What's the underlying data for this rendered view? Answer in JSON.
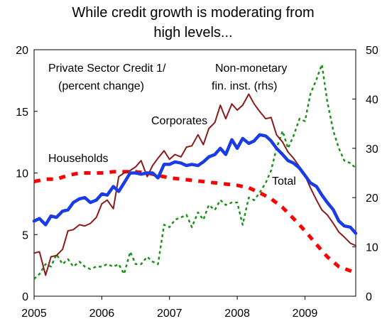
{
  "chart_data": {
    "type": "line",
    "title_lines": [
      "While credit growth is moderating from",
      "high levels..."
    ],
    "annotations": {
      "header": [
        "Private Sector Credit 1/",
        "(percent change)"
      ],
      "nonmonetary": [
        "Non-monetary",
        "fin. inst. (rhs)"
      ],
      "corporates": "Corporates",
      "households": "Households",
      "total": "Total"
    },
    "x_ticks": [
      "2005",
      "2006",
      "2007",
      "2008",
      "2009"
    ],
    "x_range": [
      2005,
      2009.75
    ],
    "y_left": {
      "range": [
        0,
        20
      ],
      "ticks": [
        "0",
        "5",
        "10",
        "15",
        "20"
      ]
    },
    "y_right": {
      "range": [
        0,
        50
      ],
      "ticks": [
        "0",
        "10",
        "20",
        "30",
        "40",
        "50"
      ]
    },
    "colors": {
      "corporates": "#8b1a1a",
      "households": "#ff0000",
      "total": "#1a3ce6",
      "nonmonetary": "#1f8f1f"
    },
    "series": [
      {
        "key": "corporates",
        "axis": "left",
        "x": [
          2005.0,
          2005.08,
          2005.17,
          2005.25,
          2005.33,
          2005.42,
          2005.5,
          2005.58,
          2005.67,
          2005.75,
          2005.83,
          2005.92,
          2006.0,
          2006.08,
          2006.17,
          2006.25,
          2006.33,
          2006.42,
          2006.5,
          2006.58,
          2006.67,
          2006.75,
          2006.83,
          2006.92,
          2007.0,
          2007.08,
          2007.17,
          2007.25,
          2007.33,
          2007.42,
          2007.5,
          2007.58,
          2007.67,
          2007.75,
          2007.83,
          2007.92,
          2008.0,
          2008.08,
          2008.17,
          2008.25,
          2008.33,
          2008.42,
          2008.5,
          2008.58,
          2008.67,
          2008.75,
          2008.83,
          2008.92,
          2009.0,
          2009.08,
          2009.17,
          2009.25,
          2009.33,
          2009.42,
          2009.5,
          2009.58,
          2009.67,
          2009.75
        ],
        "values": [
          3.5,
          3.6,
          1.7,
          3.2,
          3.3,
          3.8,
          5.3,
          5.4,
          5.8,
          5.7,
          5.9,
          6.4,
          7.5,
          7.8,
          7.1,
          9.7,
          10.0,
          10.2,
          10.5,
          11.0,
          9.7,
          10.6,
          11.2,
          11.8,
          11.1,
          11.5,
          11.3,
          12.1,
          12.2,
          13.1,
          12.3,
          13.6,
          14.1,
          15.5,
          14.4,
          15.6,
          15.1,
          15.5,
          16.4,
          15.6,
          15.0,
          14.4,
          14.5,
          13.1,
          12.5,
          11.7,
          11.2,
          10.5,
          9.8,
          8.8,
          7.8,
          7.0,
          6.6,
          5.9,
          5.2,
          4.8,
          4.3,
          4.1
        ]
      },
      {
        "key": "households",
        "axis": "left",
        "x": [
          2005.0,
          2005.17,
          2005.33,
          2005.5,
          2005.67,
          2005.83,
          2006.0,
          2006.17,
          2006.33,
          2006.5,
          2006.67,
          2006.83,
          2007.0,
          2007.17,
          2007.33,
          2007.5,
          2007.67,
          2007.83,
          2008.0,
          2008.17,
          2008.33,
          2008.5,
          2008.67,
          2008.83,
          2009.0,
          2009.17,
          2009.33,
          2009.5,
          2009.75
        ],
        "values": [
          9.3,
          9.5,
          9.5,
          9.8,
          10.0,
          10.0,
          10.0,
          10.1,
          10.1,
          10.1,
          10.0,
          9.8,
          9.6,
          9.5,
          9.4,
          9.3,
          9.2,
          9.1,
          9.0,
          8.8,
          8.4,
          7.9,
          7.2,
          6.3,
          5.3,
          4.2,
          3.2,
          2.4,
          1.9
        ]
      },
      {
        "key": "total",
        "axis": "left",
        "x": [
          2005.0,
          2005.08,
          2005.17,
          2005.25,
          2005.33,
          2005.42,
          2005.5,
          2005.58,
          2005.67,
          2005.75,
          2005.83,
          2005.92,
          2006.0,
          2006.08,
          2006.17,
          2006.25,
          2006.33,
          2006.42,
          2006.5,
          2006.58,
          2006.67,
          2006.75,
          2006.83,
          2006.92,
          2007.0,
          2007.08,
          2007.17,
          2007.25,
          2007.33,
          2007.42,
          2007.5,
          2007.58,
          2007.67,
          2007.75,
          2007.83,
          2007.92,
          2008.0,
          2008.08,
          2008.17,
          2008.25,
          2008.33,
          2008.42,
          2008.5,
          2008.58,
          2008.67,
          2008.75,
          2008.83,
          2008.92,
          2009.0,
          2009.08,
          2009.17,
          2009.25,
          2009.33,
          2009.42,
          2009.5,
          2009.58,
          2009.67,
          2009.75
        ],
        "values": [
          6.1,
          6.3,
          5.8,
          6.5,
          6.4,
          6.9,
          7.0,
          7.6,
          7.9,
          8.0,
          7.6,
          7.8,
          8.3,
          8.2,
          8.9,
          8.5,
          9.2,
          10.0,
          10.0,
          9.9,
          10.0,
          10.0,
          9.6,
          10.7,
          10.7,
          10.9,
          10.8,
          10.6,
          10.7,
          10.6,
          10.9,
          11.3,
          11.5,
          12.0,
          11.5,
          12.7,
          12.0,
          12.8,
          12.4,
          12.6,
          13.1,
          13.0,
          12.6,
          12.0,
          11.5,
          11.0,
          10.8,
          10.4,
          9.8,
          9.2,
          8.9,
          8.2,
          7.6,
          7.0,
          6.1,
          5.7,
          5.6,
          5.1
        ]
      },
      {
        "key": "nonmonetary",
        "axis": "right",
        "x": [
          2005.0,
          2005.08,
          2005.17,
          2005.25,
          2005.33,
          2005.42,
          2005.5,
          2005.58,
          2005.67,
          2005.75,
          2005.83,
          2005.92,
          2006.0,
          2006.08,
          2006.17,
          2006.25,
          2006.33,
          2006.42,
          2006.5,
          2006.58,
          2006.67,
          2006.75,
          2006.83,
          2006.92,
          2007.0,
          2007.08,
          2007.17,
          2007.25,
          2007.33,
          2007.42,
          2007.5,
          2007.58,
          2007.67,
          2007.75,
          2007.83,
          2007.92,
          2008.0,
          2008.08,
          2008.17,
          2008.25,
          2008.33,
          2008.42,
          2008.5,
          2008.58,
          2008.67,
          2008.75,
          2008.83,
          2008.92,
          2009.0,
          2009.08,
          2009.17,
          2009.25,
          2009.33,
          2009.42,
          2009.5,
          2009.58,
          2009.67,
          2009.75
        ],
        "values": [
          3.5,
          4.5,
          6.5,
          6.0,
          8.5,
          6.5,
          7.5,
          6.0,
          7.0,
          6.0,
          5.5,
          6.0,
          6.0,
          6.5,
          6.0,
          6.5,
          4.5,
          9.0,
          6.5,
          6.5,
          8.0,
          7.0,
          6.5,
          14.5,
          14.0,
          15.5,
          16.0,
          16.5,
          14.0,
          17.0,
          15.5,
          18.5,
          17.5,
          19.5,
          18.5,
          19.0,
          19.0,
          14.5,
          20.0,
          19.5,
          21.0,
          23.0,
          25.5,
          30.0,
          33.5,
          30.0,
          32.5,
          36.0,
          35.5,
          41.0,
          44.0,
          47.0,
          39.5,
          33.5,
          30.0,
          27.5,
          27.0,
          26.0
        ]
      }
    ]
  }
}
